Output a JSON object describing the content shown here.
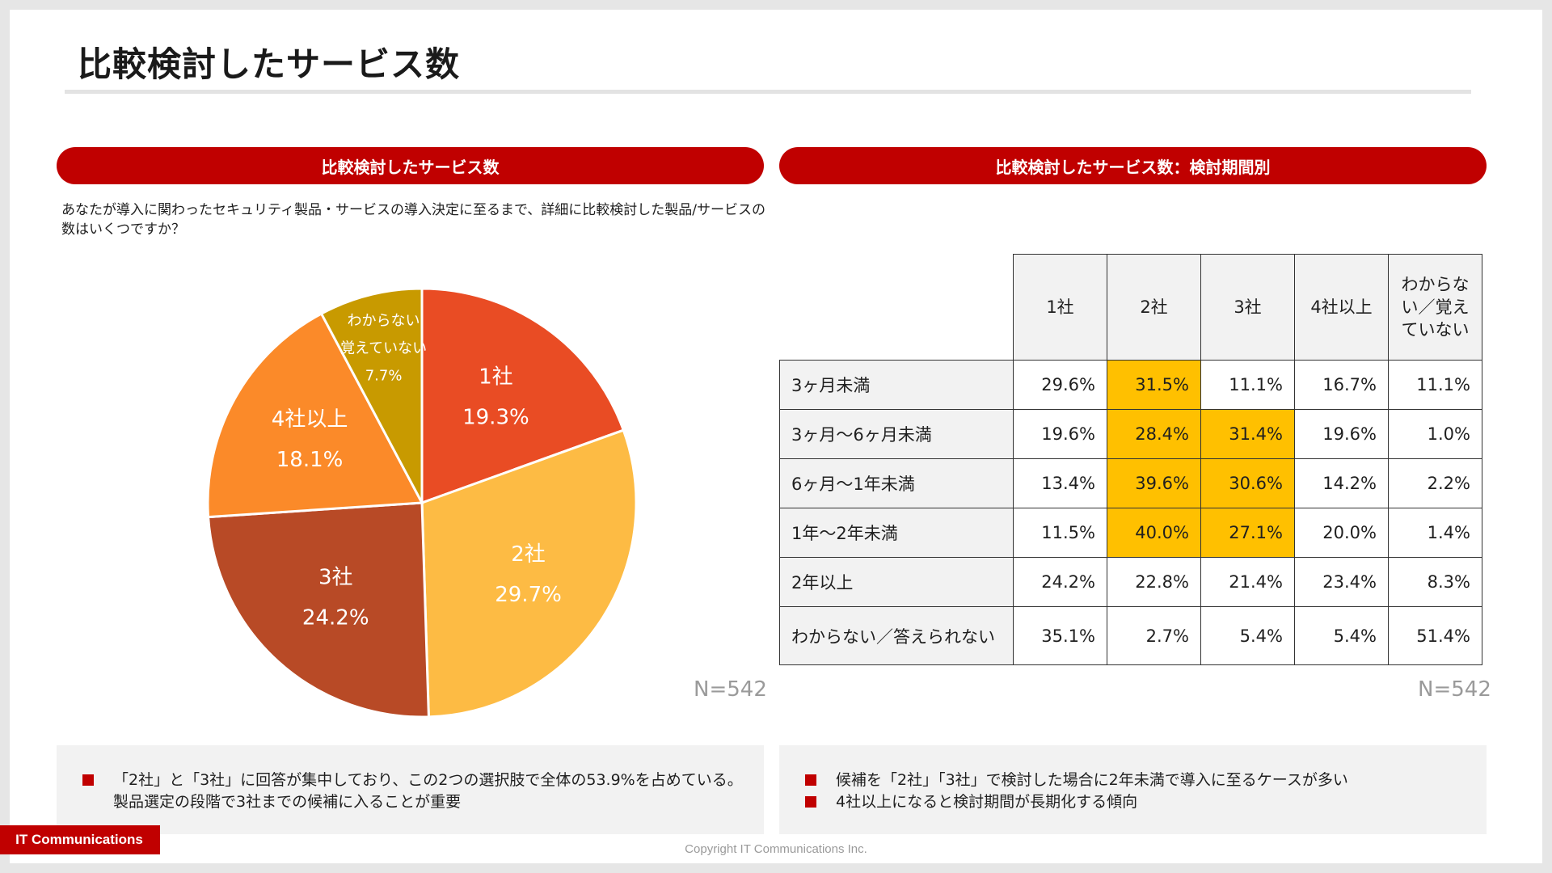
{
  "title": "比較検討したサービス数",
  "left_panel": {
    "banner": "比較検討したサービス数",
    "question": "あなたが導入に関わったセキュリティ製品・サービスの導入決定に至るまで、詳細に比較検討した製品/サービスの数はいくつですか？",
    "n_label": "N=542"
  },
  "right_panel": {
    "banner": "比較検討したサービス数：検討期間別",
    "n_label": "N=542"
  },
  "chart_data": [
    {
      "type": "pie",
      "slices": [
        {
          "label": "1社",
          "value": 19.3,
          "display": "19.3%",
          "color": "#e94c24"
        },
        {
          "label": "2社",
          "value": 29.7,
          "display": "29.7%",
          "color": "#fdbb44"
        },
        {
          "label": "3社",
          "value": 24.2,
          "display": "24.2%",
          "color": "#b84a26"
        },
        {
          "label": "4社以上",
          "value": 18.1,
          "display": "18.1%",
          "color": "#fb8a29"
        },
        {
          "label": "わからない 覚えていない",
          "label_lines": [
            "わからない",
            "覚えていない"
          ],
          "value": 7.7,
          "display": "7.7%",
          "color": "#c89a00"
        }
      ]
    },
    {
      "type": "table",
      "columns": [
        "1社",
        "2社",
        "3社",
        "4社以上",
        "わからない／覚えていない"
      ],
      "column_lines": [
        [
          "1社"
        ],
        [
          "2社"
        ],
        [
          "3社"
        ],
        [
          "4社以上"
        ],
        [
          "わからな",
          "い／覚え",
          "ていない"
        ]
      ],
      "rows": [
        {
          "label": "3ヶ月未満",
          "values": [
            "29.6%",
            "31.5%",
            "11.1%",
            "16.7%",
            "11.1%"
          ],
          "highlight": [
            false,
            true,
            false,
            false,
            false
          ]
        },
        {
          "label": "3ヶ月〜6ヶ月未満",
          "values": [
            "19.6%",
            "28.4%",
            "31.4%",
            "19.6%",
            "1.0%"
          ],
          "highlight": [
            false,
            true,
            true,
            false,
            false
          ]
        },
        {
          "label": "6ヶ月〜1年未満",
          "values": [
            "13.4%",
            "39.6%",
            "30.6%",
            "14.2%",
            "2.2%"
          ],
          "highlight": [
            false,
            true,
            true,
            false,
            false
          ]
        },
        {
          "label": "1年〜2年未満",
          "values": [
            "11.5%",
            "40.0%",
            "27.1%",
            "20.0%",
            "1.4%"
          ],
          "highlight": [
            false,
            true,
            true,
            false,
            false
          ]
        },
        {
          "label": "2年以上",
          "values": [
            "24.2%",
            "22.8%",
            "21.4%",
            "23.4%",
            "8.3%"
          ],
          "highlight": [
            false,
            false,
            false,
            false,
            false
          ]
        },
        {
          "label": "わからない／答えられない",
          "values": [
            "35.1%",
            "2.7%",
            "5.4%",
            "5.4%",
            "51.4%"
          ],
          "highlight": [
            false,
            false,
            false,
            false,
            false
          ]
        }
      ],
      "highlight_color": "#ffc000"
    }
  ],
  "notes_left": {
    "items": [
      {
        "lines": [
          "「2社」と「3社」に回答が集中しており、この2つの選択肢で全体の53.9%を占めている。",
          "製品選定の段階で3社までの候補に入ることが重要"
        ]
      }
    ]
  },
  "notes_right": {
    "items": [
      {
        "lines": [
          "候補を「2社」「3社」で検討した場合に2年未満で導入に至るケースが多い"
        ]
      },
      {
        "lines": [
          "4社以上になると検討期間が長期化する傾向"
        ]
      }
    ]
  },
  "footer": {
    "brand": "IT Communications",
    "copyright": "Copyright IT Communications Inc."
  }
}
